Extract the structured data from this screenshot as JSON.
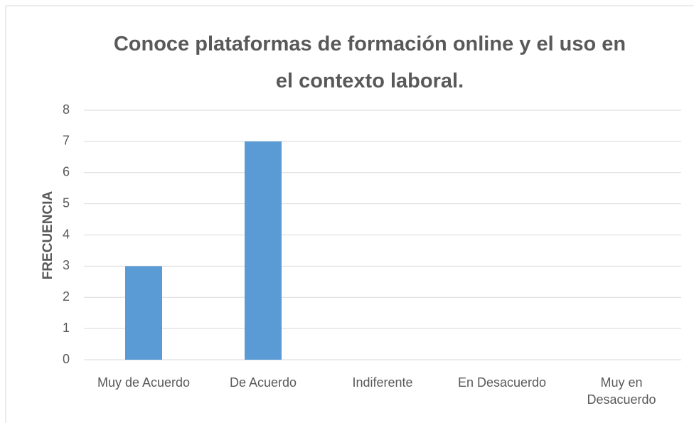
{
  "chart_data": {
    "type": "bar",
    "title": "Conoce plataformas de formación online y el uso en el contexto laboral.",
    "y_label": "FRECUENCIA",
    "categories": [
      "Muy de Acuerdo",
      "De Acuerdo",
      "Indiferente",
      "En Desacuerdo",
      "Muy en Desacuerdo"
    ],
    "values": [
      3,
      7,
      0,
      0,
      0
    ],
    "color": "#5b9bd5",
    "ylim": [
      0,
      8
    ],
    "yticks": [
      0,
      1,
      2,
      3,
      4,
      5,
      6,
      7,
      8
    ],
    "grid": true
  }
}
